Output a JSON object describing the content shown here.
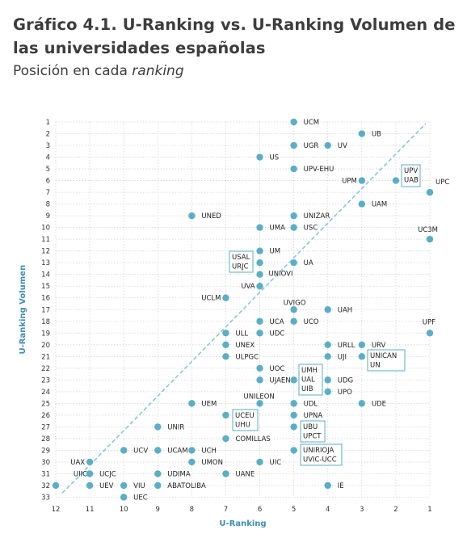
{
  "header": {
    "title": "Gráfico 4.1. U-Ranking vs. U-Ranking Volumen de las universidades españolas",
    "subtitle_prefix": "Posición en cada",
    "subtitle_italic": "ranking"
  },
  "colors": {
    "point": "#5aaec6",
    "diagonal": "#87c6dc",
    "grid": "#c9c9c9",
    "box": "#5aaec6",
    "axis_title": "#3b8fb5"
  },
  "chart_data": {
    "type": "scatter",
    "title": "Gráfico 4.1. U-Ranking vs. U-Ranking Volumen de las universidades españolas",
    "subtitle": "Posición en cada ranking",
    "xlabel": "U-Ranking",
    "ylabel": "U-Ranking Volumen",
    "xlim": [
      12,
      1
    ],
    "ylim": [
      33,
      1
    ],
    "x_reversed": true,
    "y_reversed": true,
    "grid": true,
    "x_ticks": [
      "12",
      "11",
      "10",
      "9",
      "8",
      "7",
      "6",
      "5",
      "4",
      "3",
      "2",
      "1"
    ],
    "y_ticks": [
      "1",
      "2",
      "3",
      "4",
      "5",
      "6",
      "7",
      "8",
      "9",
      "10",
      "11",
      "12",
      "13",
      "14",
      "15",
      "16",
      "17",
      "18",
      "19",
      "20",
      "21",
      "22",
      "23",
      "24",
      "25",
      "26",
      "27",
      "28",
      "29",
      "30",
      "31",
      "32",
      "33"
    ],
    "diagonal_reference": true,
    "points": [
      {
        "x": 5,
        "y": 1,
        "label": "UCM"
      },
      {
        "x": 3,
        "y": 2,
        "label": "UB"
      },
      {
        "x": 5,
        "y": 3,
        "label": "UGR"
      },
      {
        "x": 4,
        "y": 3,
        "label": "UV"
      },
      {
        "x": 6,
        "y": 4,
        "label": "US"
      },
      {
        "x": 5,
        "y": 5,
        "label": "UPV-EHU"
      },
      {
        "x": 3,
        "y": 6,
        "label": "UPM"
      },
      {
        "x": 2,
        "y": 6,
        "label": "UPV"
      },
      {
        "x": 2,
        "y": 6,
        "label": "UAB"
      },
      {
        "x": 1,
        "y": 7,
        "label": "UPC"
      },
      {
        "x": 3,
        "y": 8,
        "label": "UAM"
      },
      {
        "x": 8,
        "y": 9,
        "label": "UNED"
      },
      {
        "x": 5,
        "y": 9,
        "label": "UNIZAR"
      },
      {
        "x": 6,
        "y": 10,
        "label": "UMA"
      },
      {
        "x": 5,
        "y": 10,
        "label": "USC"
      },
      {
        "x": 1,
        "y": 11,
        "label": "UC3M"
      },
      {
        "x": 6,
        "y": 12,
        "label": "UM"
      },
      {
        "x": 6,
        "y": 13,
        "label": "USAL"
      },
      {
        "x": 6,
        "y": 13,
        "label": "URJC"
      },
      {
        "x": 5,
        "y": 13,
        "label": "UA"
      },
      {
        "x": 6,
        "y": 14,
        "label": "UNIOVI"
      },
      {
        "x": 6,
        "y": 15,
        "label": "UVA"
      },
      {
        "x": 7,
        "y": 16,
        "label": "UCLM"
      },
      {
        "x": 5,
        "y": 17,
        "label": "UVIGO"
      },
      {
        "x": 4,
        "y": 17,
        "label": "UAH"
      },
      {
        "x": 6,
        "y": 18,
        "label": "UCA"
      },
      {
        "x": 5,
        "y": 18,
        "label": "UCO"
      },
      {
        "x": 1,
        "y": 19,
        "label": "UPF"
      },
      {
        "x": 7,
        "y": 19,
        "label": "ULL"
      },
      {
        "x": 6,
        "y": 19,
        "label": "UDC"
      },
      {
        "x": 7,
        "y": 20,
        "label": "UNEX"
      },
      {
        "x": 4,
        "y": 20,
        "label": "URLL"
      },
      {
        "x": 3,
        "y": 20,
        "label": "URV"
      },
      {
        "x": 7,
        "y": 21,
        "label": "ULPGC"
      },
      {
        "x": 4,
        "y": 21,
        "label": "UJI"
      },
      {
        "x": 3,
        "y": 21,
        "label": "UNICAN"
      },
      {
        "x": 3,
        "y": 21,
        "label": "UN"
      },
      {
        "x": 6,
        "y": 22,
        "label": "UOC"
      },
      {
        "x": 6,
        "y": 23,
        "label": "UJAEN"
      },
      {
        "x": 5,
        "y": 23,
        "label": "UMH"
      },
      {
        "x": 5,
        "y": 23,
        "label": "UAL"
      },
      {
        "x": 5,
        "y": 23,
        "label": "UIB"
      },
      {
        "x": 4,
        "y": 23,
        "label": "UDG"
      },
      {
        "x": 4,
        "y": 24,
        "label": "UPO"
      },
      {
        "x": 8,
        "y": 25,
        "label": "UEM"
      },
      {
        "x": 6,
        "y": 25,
        "label": "UNILEON"
      },
      {
        "x": 5,
        "y": 25,
        "label": "UDL"
      },
      {
        "x": 3,
        "y": 25,
        "label": "UDE"
      },
      {
        "x": 7,
        "y": 26,
        "label": "UCEU"
      },
      {
        "x": 7,
        "y": 26,
        "label": "UHU"
      },
      {
        "x": 5,
        "y": 26,
        "label": "UPNA"
      },
      {
        "x": 9,
        "y": 27,
        "label": "UNIR"
      },
      {
        "x": 5,
        "y": 27,
        "label": "UBU"
      },
      {
        "x": 5,
        "y": 27,
        "label": "UPCT"
      },
      {
        "x": 7,
        "y": 28,
        "label": "COMILLAS"
      },
      {
        "x": 10,
        "y": 29,
        "label": "UCV"
      },
      {
        "x": 9,
        "y": 29,
        "label": "UCAM"
      },
      {
        "x": 8,
        "y": 29,
        "label": "UCH"
      },
      {
        "x": 5,
        "y": 29,
        "label": "UNIRIOJA"
      },
      {
        "x": 5,
        "y": 29,
        "label": "UVIC-UCC"
      },
      {
        "x": 11,
        "y": 30,
        "label": "UAX"
      },
      {
        "x": 8,
        "y": 30,
        "label": "UMON"
      },
      {
        "x": 6,
        "y": 30,
        "label": "UIC"
      },
      {
        "x": 11,
        "y": 31,
        "label": "UIIC"
      },
      {
        "x": 11,
        "y": 31,
        "label": "UCJC"
      },
      {
        "x": 9,
        "y": 31,
        "label": "UDIMA"
      },
      {
        "x": 7,
        "y": 31,
        "label": "UANE"
      },
      {
        "x": 12,
        "y": 32,
        "label": ""
      },
      {
        "x": 11,
        "y": 32,
        "label": "UEV"
      },
      {
        "x": 10,
        "y": 32,
        "label": "VIU"
      },
      {
        "x": 9,
        "y": 32,
        "label": "ABATOLIBA"
      },
      {
        "x": 4,
        "y": 32,
        "label": "IE"
      },
      {
        "x": 10,
        "y": 33,
        "label": "UEC"
      }
    ]
  }
}
